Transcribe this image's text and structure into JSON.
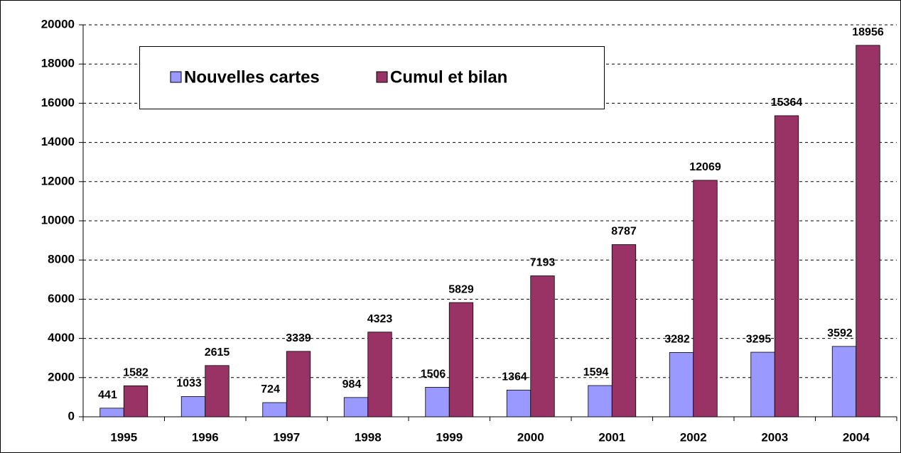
{
  "chart_data": {
    "type": "bar",
    "categories": [
      "1995",
      "1996",
      "1997",
      "1998",
      "1999",
      "2000",
      "2001",
      "2002",
      "2003",
      "2004"
    ],
    "series": [
      {
        "name": "Nouvelles cartes",
        "color": "#9999ff",
        "values": [
          441,
          1033,
          724,
          984,
          1506,
          1364,
          1594,
          3282,
          3295,
          3592
        ]
      },
      {
        "name": "Cumul et bilan",
        "color": "#993366",
        "values": [
          1582,
          2615,
          3339,
          4323,
          5829,
          7193,
          8787,
          12069,
          15364,
          18956
        ]
      }
    ],
    "ylim": [
      0,
      20000
    ],
    "yticks": [
      0,
      2000,
      4000,
      6000,
      8000,
      10000,
      12000,
      14000,
      16000,
      18000,
      20000
    ],
    "grid": true,
    "legend": "top"
  }
}
